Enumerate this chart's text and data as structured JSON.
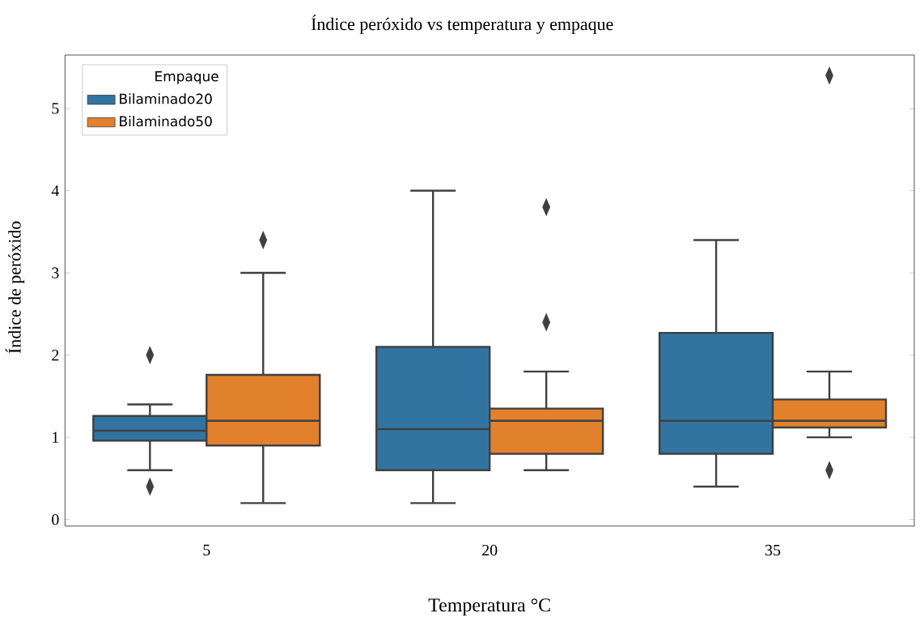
{
  "chart_data": {
    "type": "box",
    "title": "Índice peróxido vs temperatura y empaque",
    "xlabel": "Temperatura °C",
    "ylabel": "Índice de peróxido",
    "legend_title": "Empaque",
    "legend": "top left",
    "marker": "diamond",
    "categories": [
      "5",
      "20",
      "35"
    ],
    "ylim": [
      -0.08,
      5.65
    ],
    "yticks": [
      0,
      1,
      2,
      3,
      4,
      5
    ],
    "series": [
      {
        "name": "Bilaminado20",
        "color": "#3274a1",
        "boxes": [
          {
            "low": 0.6,
            "q1": 0.96,
            "median": 1.08,
            "q3": 1.26,
            "high": 1.4,
            "outliers": [
              2.0,
              0.4
            ]
          },
          {
            "low": 0.2,
            "q1": 0.6,
            "median": 1.1,
            "q3": 2.1,
            "high": 4.0
          },
          {
            "low": 0.4,
            "q1": 0.8,
            "median": 1.2,
            "q3": 2.27,
            "high": 3.4
          }
        ]
      },
      {
        "name": "Bilaminado50",
        "color": "#e1812c",
        "boxes": [
          {
            "low": 0.2,
            "q1": 0.9,
            "median": 1.2,
            "q3": 1.76,
            "high": 3.0,
            "outliers": [
              3.4
            ]
          },
          {
            "low": 0.6,
            "q1": 0.8,
            "median": 1.2,
            "q3": 1.35,
            "high": 1.8,
            "outliers": [
              2.4,
              3.8
            ]
          },
          {
            "low": 1.0,
            "q1": 1.12,
            "median": 1.2,
            "q3": 1.46,
            "high": 1.8,
            "outliers": [
              0.6,
              5.4
            ]
          }
        ]
      }
    ]
  }
}
